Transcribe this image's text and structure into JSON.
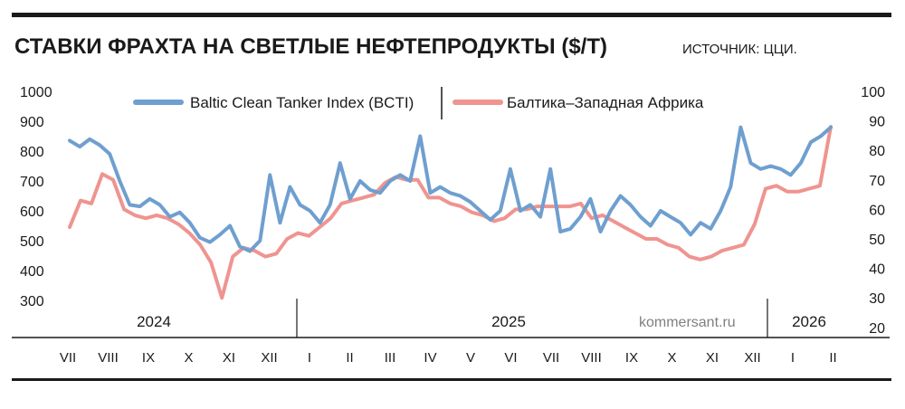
{
  "header": {
    "title": "СТАВКИ ФРАХТА НА СВЕТЛЫЕ НЕФТЕПРОДУКТЫ ($/Т)",
    "source": "ИСТОЧНИК: ЦЦИ."
  },
  "watermark": "kommersant.ru",
  "colors": {
    "bcti": "#6f9fcf",
    "west_africa": "#ef9490",
    "axis": "#1a1a1a"
  },
  "chart_data": {
    "type": "line",
    "legend_placement": "top-center",
    "grid": false,
    "y_left": {
      "ticks": [
        "1000",
        "900",
        "800",
        "700",
        "600",
        "500",
        "400",
        "300"
      ],
      "ylim": [
        300,
        1000
      ]
    },
    "y_right": {
      "ticks": [
        "100",
        "90",
        "80",
        "70",
        "60",
        "50",
        "40",
        "30",
        "20"
      ],
      "ylim": [
        20,
        100
      ]
    },
    "months": [
      "VII",
      "VIII",
      "IX",
      "X",
      "XI",
      "XII",
      "I",
      "II",
      "III",
      "IV",
      "V",
      "VI",
      "VII",
      "VIII",
      "IX",
      "X",
      "XI",
      "XII",
      "I",
      "II"
    ],
    "years": [
      "2024",
      "2025",
      "2026"
    ],
    "series": [
      {
        "name": "Baltic Clean Tanker Index (BCTI)",
        "axis": "left",
        "values": [
          835,
          815,
          840,
          820,
          790,
          700,
          620,
          615,
          640,
          620,
          580,
          595,
          560,
          510,
          495,
          520,
          550,
          480,
          465,
          500,
          720,
          560,
          680,
          620,
          600,
          560,
          620,
          760,
          640,
          700,
          670,
          660,
          700,
          720,
          700,
          850,
          660,
          680,
          660,
          650,
          630,
          600,
          570,
          600,
          740,
          600,
          620,
          580,
          740,
          530,
          540,
          580,
          640,
          530,
          600,
          650,
          620,
          580,
          550,
          600,
          580,
          560,
          520,
          560,
          540,
          600,
          680,
          880,
          760,
          740,
          750,
          740,
          720,
          760,
          830,
          850,
          880
        ]
      },
      {
        "name": "Балтика–Западная Африка",
        "axis": "right",
        "values": [
          54,
          63,
          62,
          72,
          70,
          60,
          58,
          57,
          58,
          57,
          55,
          52,
          48,
          42,
          30,
          44,
          47,
          46,
          44,
          45,
          50,
          52,
          51,
          54,
          57,
          62,
          63,
          64,
          65,
          69,
          71,
          70,
          70,
          64,
          64,
          62,
          61,
          59,
          58,
          56,
          57,
          60,
          60,
          61,
          61,
          61,
          61,
          62,
          57,
          58,
          56,
          54,
          52,
          50,
          50,
          48,
          47,
          44,
          43,
          44,
          46,
          47,
          48,
          55,
          67,
          68,
          66,
          66,
          67,
          68,
          88
        ]
      }
    ]
  }
}
